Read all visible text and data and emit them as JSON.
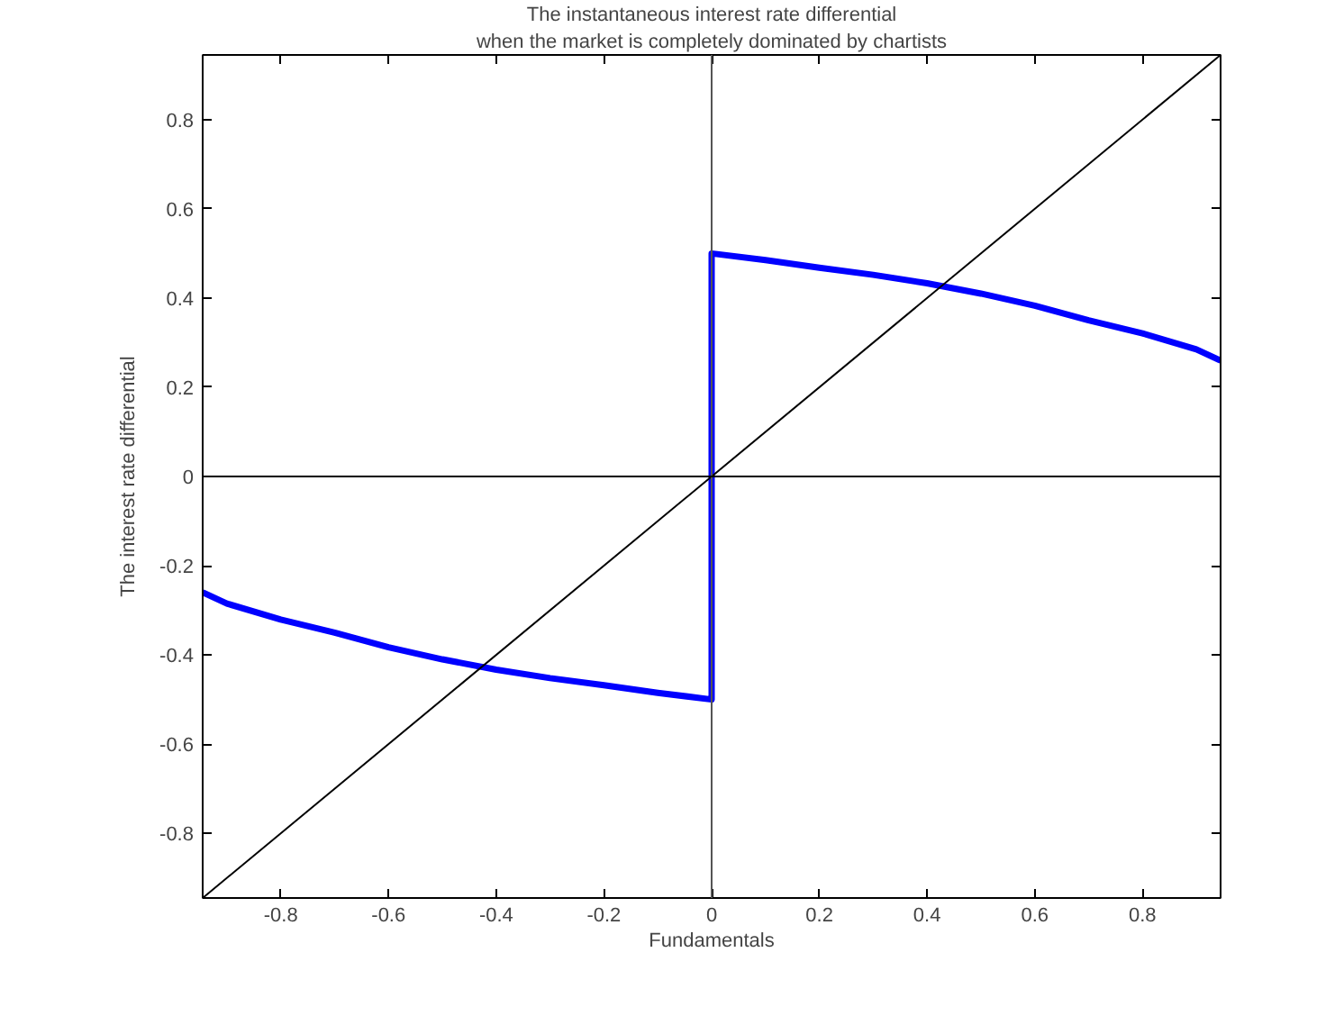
{
  "chart_data": {
    "type": "line",
    "title": "The instantaneous interest rate differential",
    "subtitle": "when the market is completely dominated by chartists",
    "xlabel": "Fundamentals",
    "ylabel": "The interest rate differential",
    "series": [
      {
        "color": "#0000ff",
        "x": [
          -0.945,
          -0.9,
          -0.8,
          -0.7,
          -0.6,
          -0.5,
          -0.4,
          -0.3,
          -0.2,
          -0.1,
          0,
          0,
          0.1,
          0.2,
          0.3,
          0.4,
          0.5,
          0.6,
          0.7,
          0.8,
          0.9,
          0.945
        ],
        "values": [
          -0.26,
          -0.285,
          -0.321,
          -0.35,
          -0.383,
          -0.41,
          -0.433,
          -0.452,
          -0.468,
          -0.485,
          -0.5,
          0.5,
          0.485,
          0.468,
          0.452,
          0.433,
          0.41,
          0.383,
          0.35,
          0.321,
          0.285,
          0.26
        ]
      },
      {
        "color": "#000000",
        "x": [
          -0.945,
          0.945
        ],
        "values": [
          -0.945,
          0.945
        ]
      }
    ],
    "ref_lines": [
      {
        "axis": "x",
        "value": 0,
        "color": "#555555"
      },
      {
        "axis": "y",
        "value": 0,
        "color": "#000000"
      }
    ],
    "xlim": [
      -0.945,
      0.945
    ],
    "ylim": [
      -0.945,
      0.945
    ],
    "xticks": [
      -0.8,
      -0.6,
      -0.4,
      -0.2,
      0,
      0.2,
      0.4,
      0.6,
      0.8
    ],
    "yticks": [
      -0.8,
      -0.6,
      -0.4,
      -0.2,
      0,
      0.2,
      0.4,
      0.6,
      0.8
    ],
    "grid": false,
    "marker": "none",
    "line_style": "solid"
  }
}
